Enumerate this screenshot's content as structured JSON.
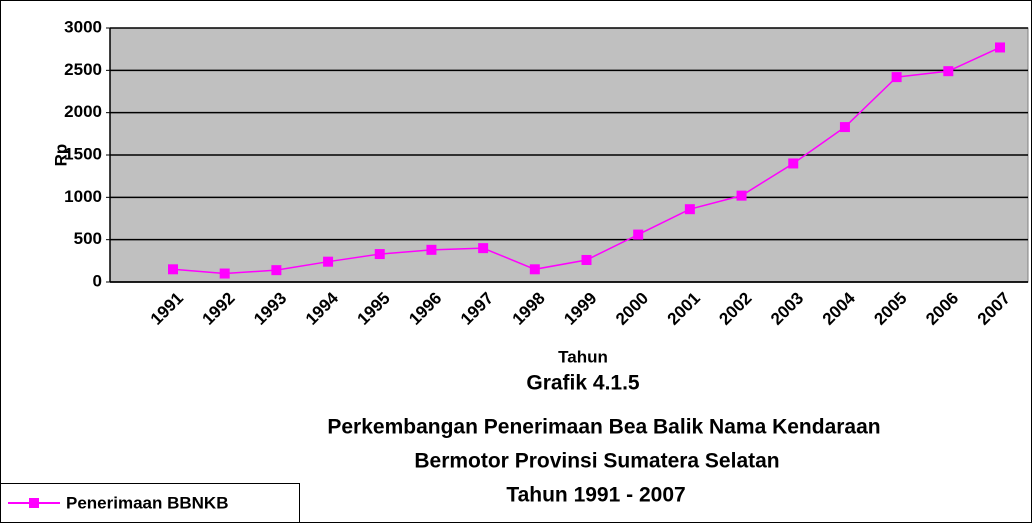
{
  "chart_data": {
    "type": "line",
    "title": [
      "Grafik 4.1.5",
      "Perkembangan Penerimaan Bea Balik Nama Kendaraan",
      "Bermotor Provinsi Sumatera Selatan",
      "Tahun 1991 - 2007"
    ],
    "x_label": "Tahun",
    "y_label": "Rp",
    "categories": [
      "1991",
      "1992",
      "1993",
      "1994",
      "1995",
      "1996",
      "1997",
      "1998",
      "1999",
      "2000",
      "2001",
      "2002",
      "2003",
      "2004",
      "2005",
      "2006",
      "2007"
    ],
    "series": [
      {
        "name": "Penerimaan BBNKB",
        "color": "#ff00ff",
        "values": [
          150,
          100,
          140,
          240,
          330,
          380,
          400,
          150,
          260,
          560,
          860,
          1020,
          1400,
          1830,
          2420,
          2490,
          2770
        ]
      }
    ],
    "ylim": [
      0,
      3000
    ],
    "yticks": [
      0,
      500,
      1000,
      1500,
      2000,
      2500,
      3000
    ],
    "grid": true,
    "legend": "bottom-left"
  }
}
